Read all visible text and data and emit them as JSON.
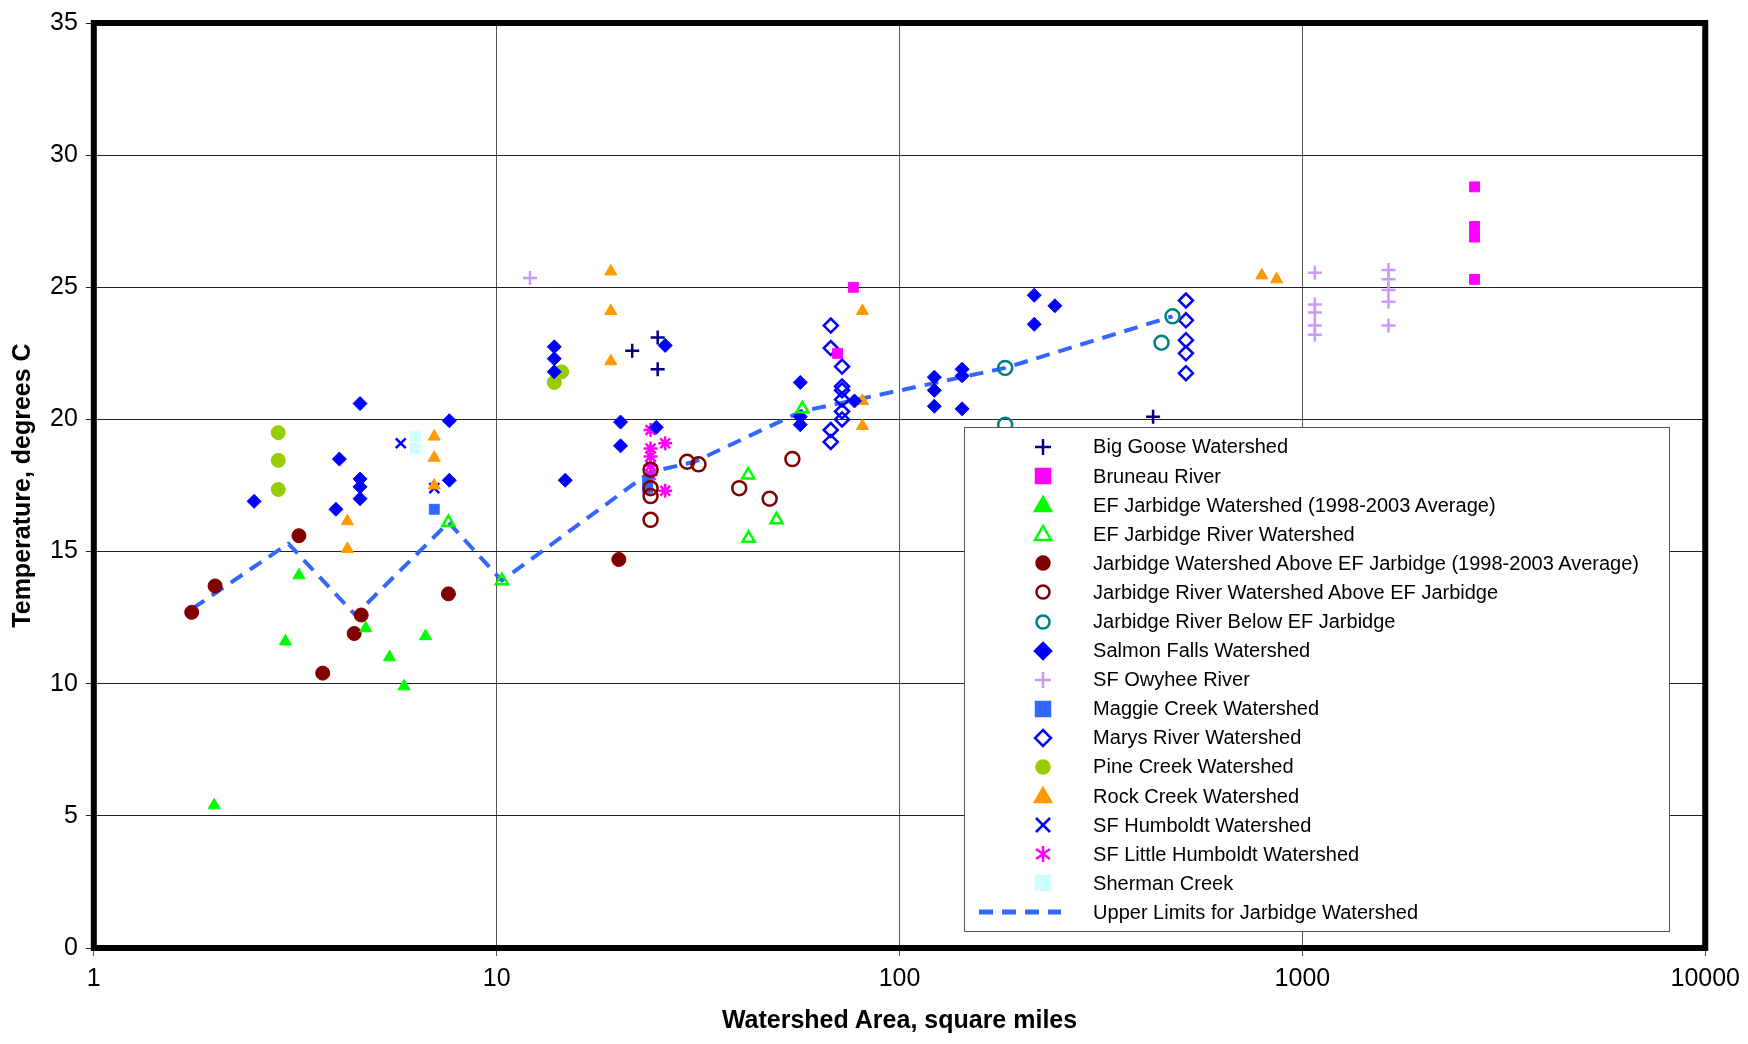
{
  "chart_data": {
    "type": "scatter",
    "xlabel": "Watershed Area, square miles",
    "ylabel": "Temperature, degrees C",
    "log": "x",
    "xlim": [
      1,
      10000
    ],
    "xticks": [
      1,
      10,
      100,
      1000,
      10000
    ],
    "ylim": [
      0,
      35
    ],
    "yticks": [
      0,
      5,
      10,
      15,
      20,
      25,
      30,
      35
    ],
    "grid": true,
    "legend": "bottom right",
    "series": [
      {
        "name": "Big Goose Watershed",
        "color": "#000080",
        "marker": "cross",
        "x": [
          21.7,
          25.1,
          25.1,
          426
        ],
        "values": [
          22.6,
          23.1,
          21.9,
          20.1
        ]
      },
      {
        "name": "Bruneau River",
        "color": "#ff00ff",
        "marker": "square",
        "x": [
          76.8,
          70.2,
          2675,
          2675,
          2675,
          2675
        ],
        "values": [
          25.0,
          22.5,
          28.8,
          27.3,
          26.9,
          25.3
        ]
      },
      {
        "name": "EF Jarbidge Watershed (1998-2003 Average)",
        "color": "#00ff00",
        "marker": "triangle",
        "x": [
          1.99,
          2.99,
          3.23,
          4.73,
          5.42,
          5.89,
          6.66
        ],
        "values": [
          5.4,
          11.6,
          14.1,
          12.1,
          11.0,
          9.9,
          11.8
        ]
      },
      {
        "name": "EF Jarbidge River Watershed",
        "color": "#00ff00",
        "marker": "triangle-open",
        "x": [
          7.59,
          10.3,
          42.1,
          42.2,
          49.5,
          57.4
        ],
        "values": [
          16.1,
          13.9,
          17.9,
          15.5,
          16.2,
          20.4
        ]
      },
      {
        "name": "Jarbidge Watershed Above EF Jarbidge (1998-2003 Average)",
        "color": "#800000",
        "marker": "circle",
        "x": [
          1.75,
          2.0,
          3.23,
          3.7,
          4.43,
          4.61,
          7.59,
          20.1
        ],
        "values": [
          12.7,
          13.7,
          15.6,
          10.4,
          11.9,
          12.6,
          13.4,
          14.7
        ]
      },
      {
        "name": "Jarbidge River Watershed Above EF Jarbidge",
        "color": "#800000",
        "marker": "circle-open",
        "x": [
          24.1,
          24.1,
          24.1,
          24.1,
          29.7,
          31.7,
          40.0,
          47.6,
          54.2
        ],
        "values": [
          18.1,
          17.4,
          17.1,
          16.2,
          18.4,
          18.3,
          17.4,
          17.0,
          18.5
        ]
      },
      {
        "name": "Jarbidge River Below EF Jarbidge",
        "color": "#008080",
        "marker": "circle-open",
        "x": [
          182.9,
          182.9,
          447,
          476
        ],
        "values": [
          21.95,
          19.8,
          22.9,
          23.9
        ]
      },
      {
        "name": "Salmon Falls Watershed",
        "color": "#0000ff",
        "marker": "diamond",
        "x": [
          2.5,
          4.58,
          7.63,
          4.07,
          4.58,
          4.58,
          4.58,
          3.99,
          7.63,
          13.9,
          13.9,
          13.9,
          20.3,
          20.3,
          14.8,
          24.9,
          26.2,
          56.7,
          56.7,
          56.7,
          77.3,
          122,
          122,
          122,
          143,
          143,
          143,
          216,
          216,
          243
        ],
        "values": [
          16.9,
          20.6,
          19.95,
          18.5,
          17.75,
          17.45,
          17.0,
          16.6,
          17.7,
          22.75,
          22.3,
          21.8,
          19.9,
          19.0,
          17.7,
          19.7,
          22.8,
          21.4,
          20.1,
          19.8,
          20.7,
          21.6,
          21.1,
          20.5,
          21.9,
          21.65,
          20.4,
          24.7,
          23.6,
          24.3
        ]
      },
      {
        "name": "SF Owyhee River",
        "color": "#cc99ff",
        "marker": "cross",
        "x": [
          12.1,
          1074,
          1074,
          1074,
          1074,
          1074,
          1636,
          1636,
          1636,
          1636,
          1636
        ],
        "values": [
          25.35,
          25.55,
          24.35,
          24.05,
          23.55,
          23.2,
          25.65,
          25.3,
          24.9,
          24.45,
          23.55
        ]
      },
      {
        "name": "Maggie Creek Watershed",
        "color": "#3366ff",
        "marker": "square",
        "x": [
          7.0,
          23.7,
          23.7
        ],
        "values": [
          16.6,
          17.7,
          17.4
        ]
      },
      {
        "name": "Marys River Watershed",
        "color": "#0000ff",
        "marker": "diamond-open",
        "x": [
          67.5,
          67.5,
          72.0,
          72.0,
          72.0,
          72.0,
          72.0,
          72.0,
          67.5,
          67.5,
          514,
          514,
          514,
          514,
          514
        ],
        "values": [
          23.55,
          22.7,
          22.0,
          21.25,
          21.1,
          20.75,
          20.3,
          20.0,
          19.6,
          19.15,
          24.5,
          23.75,
          23.0,
          22.5,
          21.75
        ]
      },
      {
        "name": "Pine Creek Watershed",
        "color": "#99cc00",
        "marker": "circle",
        "x": [
          2.87,
          2.87,
          2.87,
          14.5,
          13.9
        ],
        "values": [
          19.5,
          18.45,
          17.35,
          21.8,
          21.4
        ]
      },
      {
        "name": "Rock Creek Watershed",
        "color": "#ff9900",
        "marker": "triangle",
        "x": [
          7.0,
          7.0,
          7.0,
          4.26,
          4.26,
          19.2,
          19.2,
          19.2,
          80.9,
          80.9,
          80.9,
          793,
          863
        ],
        "values": [
          19.35,
          18.55,
          17.5,
          16.15,
          15.1,
          25.6,
          24.1,
          22.2,
          24.1,
          20.7,
          19.75,
          25.45,
          25.3
        ]
      },
      {
        "name": "SF Humboldt Watershed",
        "color": "#0000ff",
        "marker": "x",
        "x": [
          5.78,
          7.0
        ],
        "values": [
          19.1,
          17.4
        ]
      },
      {
        "name": "SF Little Humboldt Watershed",
        "color": "#ff00ff",
        "x": [
          24.1,
          24.1,
          24.1,
          24.1,
          24.1,
          26.2,
          26.2
        ],
        "values": [
          19.6,
          18.9,
          18.6,
          18.25,
          17.9,
          19.1,
          17.3
        ]
      },
      {
        "name": "Sherman Creek",
        "color": "#ccffff",
        "marker": "square",
        "x": [
          6.29,
          6.29
        ],
        "values": [
          19.35,
          18.9
        ]
      },
      {
        "name": "Upper Limits for Jarbidge Watershed",
        "type": "line",
        "line_style": "dashed",
        "marker": "none",
        "color": "#3366ff",
        "x": [
          1.76,
          3.04,
          4.46,
          7.6,
          10.3,
          24,
          31,
          57,
          183,
          476
        ],
        "values": [
          12.85,
          15.3,
          12.6,
          16.1,
          13.9,
          18.0,
          18.4,
          20.3,
          21.95,
          23.9
        ]
      }
    ]
  }
}
